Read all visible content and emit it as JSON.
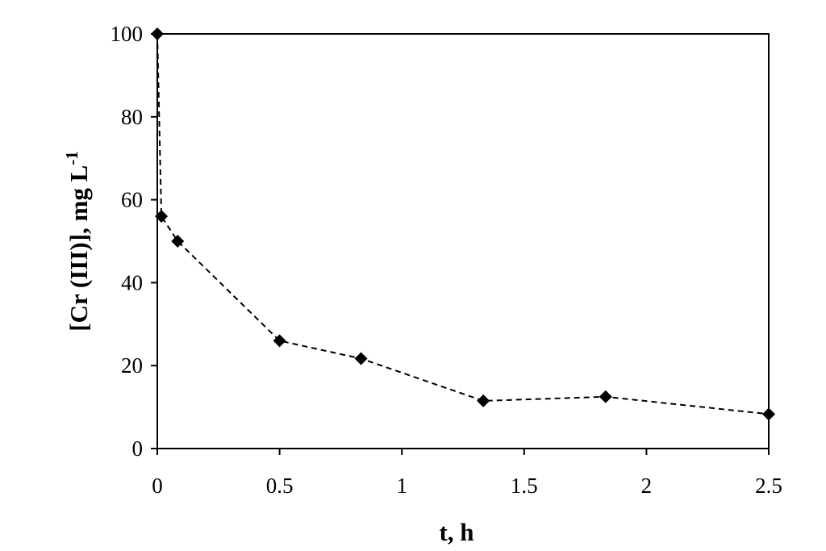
{
  "chart_data": {
    "type": "line",
    "title": "",
    "xlabel": "t, h",
    "ylabel_main": "[Cr (III)], mg L",
    "ylabel_superscript": "-1",
    "xlim": [
      0,
      2.5
    ],
    "ylim": [
      0,
      100
    ],
    "x_ticks": [
      "0",
      "0.5",
      "1",
      "1.5",
      "2",
      "2.5"
    ],
    "y_ticks": [
      "0",
      "20",
      "40",
      "60",
      "80",
      "100"
    ],
    "grid": false,
    "legend": "none",
    "series": [
      {
        "x": [
          0,
          0.0167,
          0.0833,
          0.5,
          0.833,
          1.333,
          1.833,
          2.5
        ],
        "y": [
          100,
          56,
          50,
          26,
          21.7,
          11.5,
          12.5,
          8.3
        ],
        "line_style": "dashed",
        "marker": "diamond",
        "color": "#000000"
      }
    ]
  }
}
